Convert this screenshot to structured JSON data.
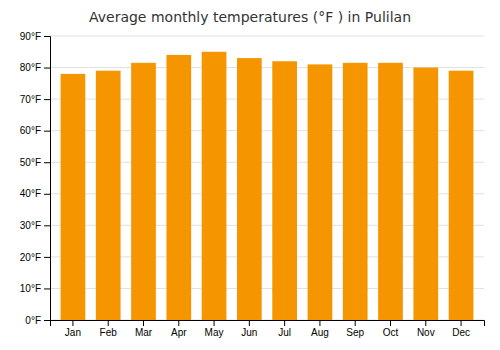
{
  "chart_data": {
    "type": "bar",
    "title": "Average monthly temperatures (°F ) in Pulilan",
    "categories": [
      "Jan",
      "Feb",
      "Mar",
      "Apr",
      "May",
      "Jun",
      "Jul",
      "Aug",
      "Sep",
      "Oct",
      "Nov",
      "Dec"
    ],
    "values": [
      78,
      79,
      81.5,
      84,
      85,
      83,
      82,
      81,
      81.5,
      81.5,
      80,
      79
    ],
    "color": "#F59500",
    "ylim": [
      0,
      90
    ],
    "yticks": [
      {
        "value": 0,
        "label": "0°F"
      },
      {
        "value": 10,
        "label": "10°F"
      },
      {
        "value": 20,
        "label": "20°F"
      },
      {
        "value": 30,
        "label": "30°F"
      },
      {
        "value": 40,
        "label": "40°F"
      },
      {
        "value": 50,
        "label": "50°F"
      },
      {
        "value": 60,
        "label": "60°F"
      },
      {
        "value": 70,
        "label": "70°F"
      },
      {
        "value": 80,
        "label": "80°F"
      },
      {
        "value": 90,
        "label": "90°F"
      }
    ],
    "grid": true
  }
}
